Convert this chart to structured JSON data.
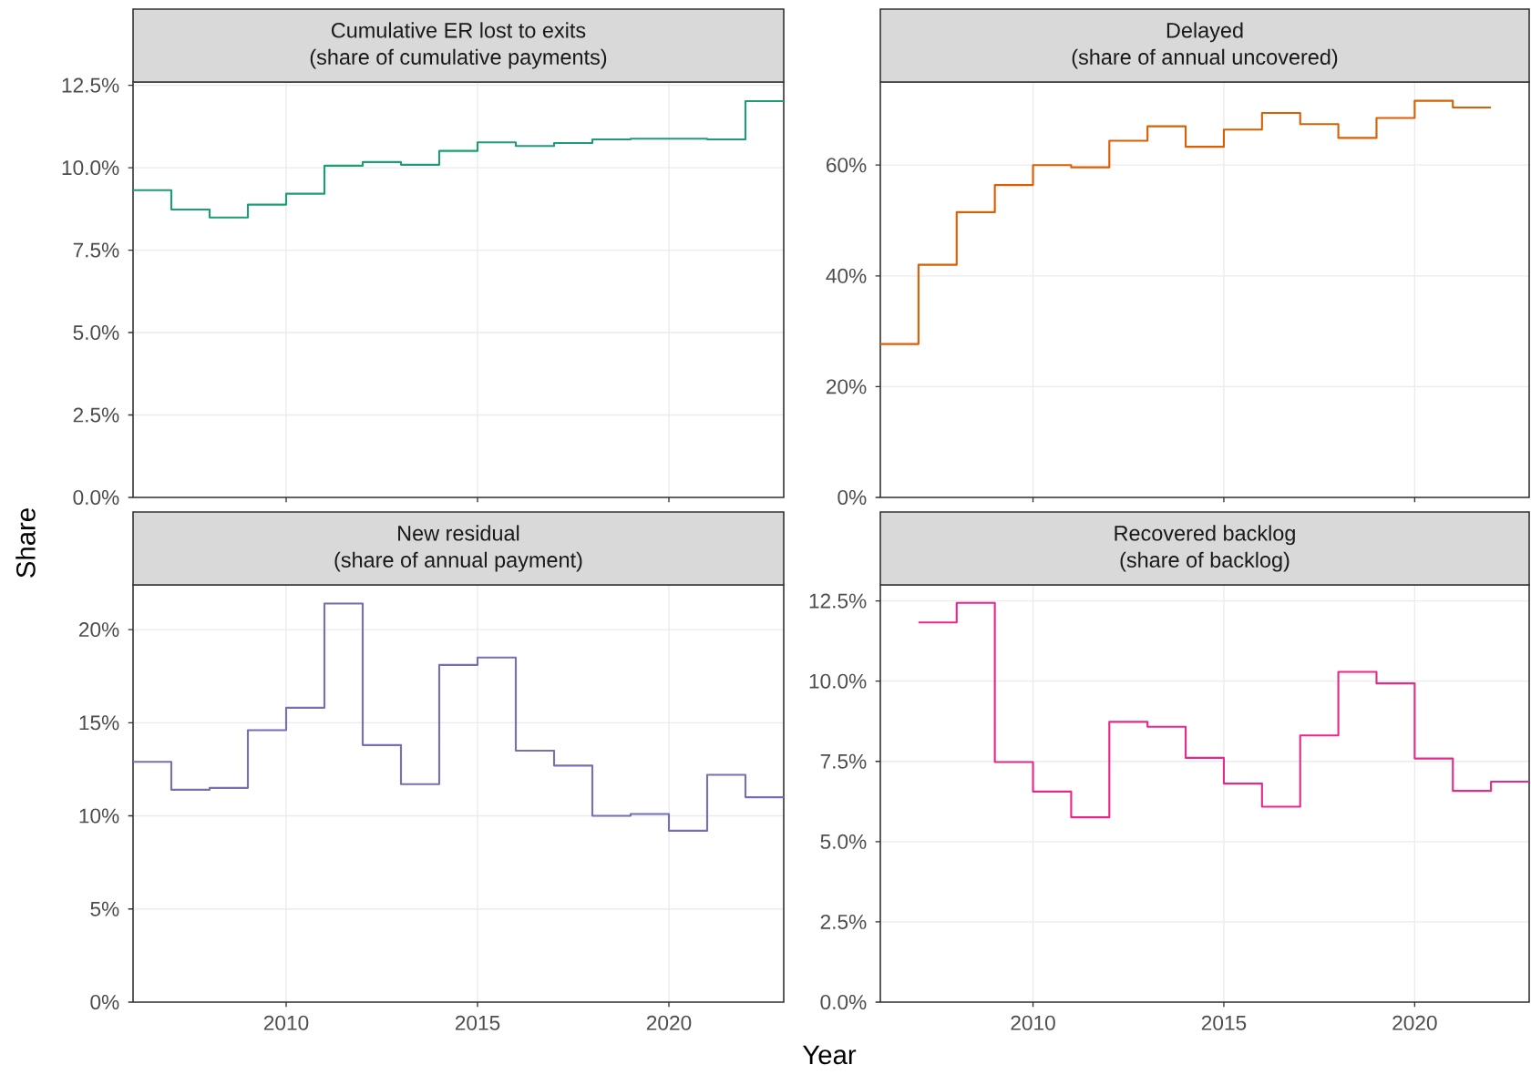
{
  "chart_data": [
    {
      "type": "step",
      "title": "Cumulative ER lost to exits",
      "subtitle": "(share of cumulative payments)",
      "x": [
        2006,
        2007,
        2008,
        2009,
        2010,
        2011,
        2012,
        2013,
        2014,
        2015,
        2016,
        2017,
        2018,
        2019,
        2020,
        2021,
        2022,
        2023
      ],
      "values": [
        9.32,
        8.73,
        8.49,
        8.88,
        9.21,
        10.06,
        10.17,
        10.09,
        10.51,
        10.77,
        10.66,
        10.75,
        10.86,
        10.88,
        10.88,
        10.86,
        12.02,
        12.02
      ],
      "color": "#1b9e77",
      "xlim": [
        2006,
        2023
      ],
      "ylim": [
        0,
        12.6
      ],
      "xticks": [
        2010,
        2015,
        2020
      ],
      "yticks": [
        {
          "value": 0,
          "label": "0.0%"
        },
        {
          "value": 2.5,
          "label": "2.5%"
        },
        {
          "value": 5,
          "label": "5.0%"
        },
        {
          "value": 7.5,
          "label": "7.5%"
        },
        {
          "value": 10,
          "label": "10.0%"
        },
        {
          "value": 12.5,
          "label": "12.5%"
        }
      ],
      "grid": true,
      "tick_labels": "y"
    },
    {
      "type": "step",
      "title": "Delayed",
      "subtitle": "(share of annual uncovered)",
      "x": [
        2006,
        2007,
        2008,
        2009,
        2010,
        2011,
        2012,
        2013,
        2014,
        2015,
        2016,
        2017,
        2018,
        2019,
        2020,
        2021,
        2022
      ],
      "values": [
        27.7,
        42.0,
        51.5,
        56.4,
        60.0,
        59.6,
        64.4,
        67.0,
        63.3,
        66.4,
        69.4,
        67.4,
        64.9,
        68.5,
        71.6,
        70.4,
        70.4
      ],
      "color": "#d95f02",
      "xlim": [
        2006,
        2023
      ],
      "ylim": [
        0,
        75
      ],
      "xticks": [
        2010,
        2015,
        2020
      ],
      "yticks": [
        {
          "value": 0,
          "label": "0%"
        },
        {
          "value": 20,
          "label": "20%"
        },
        {
          "value": 40,
          "label": "40%"
        },
        {
          "value": 60,
          "label": "60%"
        }
      ],
      "grid": true,
      "tick_labels": "y"
    },
    {
      "type": "step",
      "title": "New residual",
      "subtitle": "(share of annual payment)",
      "xlabel": "Year",
      "ylabel": "Share",
      "x": [
        2006,
        2007,
        2008,
        2009,
        2010,
        2011,
        2012,
        2013,
        2014,
        2015,
        2016,
        2017,
        2018,
        2019,
        2020,
        2021,
        2022,
        2023
      ],
      "values": [
        12.9,
        11.4,
        11.5,
        14.6,
        15.8,
        21.4,
        13.8,
        11.7,
        18.1,
        18.5,
        13.5,
        12.7,
        10.0,
        10.1,
        9.2,
        12.2,
        11.0,
        11.0
      ],
      "color": "#7570b3",
      "xlim": [
        2006,
        2023
      ],
      "ylim": [
        0,
        22.4
      ],
      "xticks": [
        2010,
        2015,
        2020
      ],
      "yticks": [
        {
          "value": 0,
          "label": "0%"
        },
        {
          "value": 5,
          "label": "5%"
        },
        {
          "value": 10,
          "label": "10%"
        },
        {
          "value": 15,
          "label": "15%"
        },
        {
          "value": 20,
          "label": "20%"
        }
      ],
      "grid": true
    },
    {
      "type": "step",
      "title": "Recovered backlog",
      "subtitle": "(share of backlog)",
      "x": [
        2007,
        2008,
        2009,
        2010,
        2011,
        2012,
        2013,
        2014,
        2015,
        2016,
        2017,
        2018,
        2019,
        2020,
        2021,
        2022,
        2023
      ],
      "values": [
        11.83,
        12.44,
        7.48,
        6.56,
        5.76,
        8.73,
        8.58,
        7.61,
        6.81,
        6.09,
        8.31,
        10.29,
        9.93,
        7.59,
        6.58,
        6.87,
        6.87
      ],
      "color": "#e7298a",
      "xlim": [
        2006,
        2023
      ],
      "ylim": [
        0,
        13
      ],
      "xticks": [
        2010,
        2015,
        2020
      ],
      "yticks": [
        {
          "value": 0,
          "label": "0.0%"
        },
        {
          "value": 2.5,
          "label": "2.5%"
        },
        {
          "value": 5,
          "label": "5.0%"
        },
        {
          "value": 7.5,
          "label": "7.5%"
        },
        {
          "value": 10,
          "label": "10.0%"
        },
        {
          "value": 12.5,
          "label": "12.5%"
        }
      ],
      "grid": true
    }
  ]
}
